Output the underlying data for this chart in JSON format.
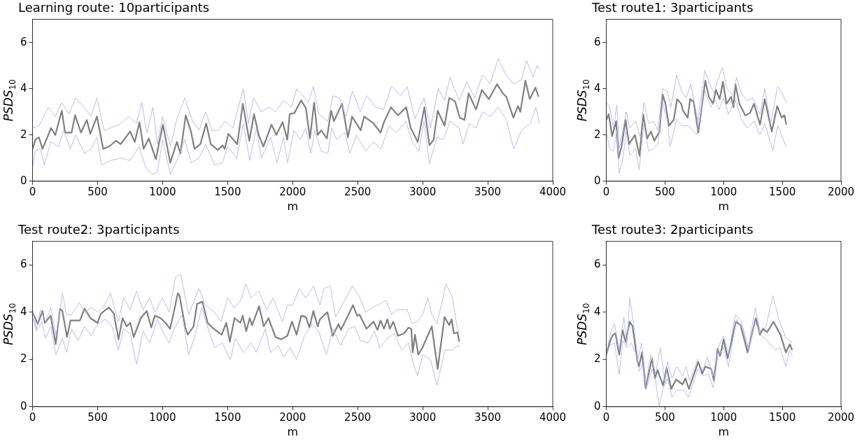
{
  "chart_data": [
    {
      "type": "line",
      "title": "Learning route: 10participants",
      "xlabel": "m",
      "ylabel": "PSDS$_{10}$",
      "xlim": [
        0,
        4000
      ],
      "xticks": [
        0,
        500,
        1000,
        1500,
        2000,
        2500,
        3000,
        3500,
        4000
      ],
      "ylim": [
        0,
        7
      ],
      "yticks": [
        0,
        2,
        4,
        6
      ],
      "grid": false,
      "legend": false,
      "marker": "none",
      "series": [
        {
          "color": "#b4b4f0",
          "x": [
            0,
            50,
            120,
            175,
            225,
            280,
            330,
            380,
            450,
            495,
            550,
            600,
            680,
            740,
            800,
            840,
            880,
            925,
            960,
            1000,
            1060,
            1110,
            1170,
            1230,
            1280,
            1330,
            1380,
            1430,
            1480,
            1540,
            1620,
            1660,
            1700,
            1760,
            1820,
            1870,
            1930,
            1990,
            2030,
            2080,
            2120,
            2160,
            2200,
            2270,
            2310,
            2360,
            2410,
            2460,
            2520,
            2570,
            2640,
            2700,
            2760,
            2830,
            2880,
            2940,
            3010,
            3060,
            3120,
            3170,
            3210,
            3280,
            3340,
            3400,
            3460,
            3520,
            3580,
            3640,
            3700,
            3760,
            3800,
            3850,
            3880,
            3900
          ],
          "values": [
            2.3,
            2.4,
            3.2,
            2.8,
            3.4,
            2.9,
            3.6,
            3.3,
            2.8,
            3.6,
            2.2,
            2.3,
            2.5,
            2.8,
            2.5,
            3.4,
            2.1,
            3.2,
            1.6,
            2.8,
            1.5,
            2.7,
            3.6,
            2.6,
            2.2,
            3.0,
            2.2,
            2.2,
            2.6,
            2.3,
            4.0,
            2.5,
            3.6,
            3.0,
            3.2,
            3.0,
            3.5,
            3.2,
            4.0,
            3.7,
            3.4,
            4.1,
            2.9,
            2.6,
            3.7,
            3.6,
            2.8,
            3.9,
            3.0,
            3.7,
            3.2,
            3.1,
            4.1,
            3.7,
            4.1,
            2.7,
            3.6,
            2.3,
            4.0,
            3.5,
            4.5,
            3.5,
            4.3,
            3.6,
            4.6,
            4.2,
            5.3,
            4.6,
            4.2,
            4.4,
            5.2,
            4.5,
            5.0,
            4.8
          ]
        },
        {
          "color": "#b4b4f0",
          "x": [
            0,
            20,
            60,
            90,
            140,
            200,
            240,
            290,
            330,
            400,
            450,
            495,
            530,
            600,
            680,
            750,
            820,
            870,
            920,
            960,
            1000,
            1060,
            1110,
            1170,
            1220,
            1280,
            1330,
            1400,
            1460,
            1500,
            1570,
            1620,
            1670,
            1720,
            1760,
            1830,
            1880,
            1930,
            1960,
            2010,
            2060,
            2100,
            2140,
            2170,
            2220,
            2270,
            2300,
            2340,
            2400,
            2440,
            2490,
            2560,
            2620,
            2680,
            2740,
            2800,
            2870,
            2920,
            2970,
            3010,
            3050,
            3110,
            3160,
            3210,
            3280,
            3310,
            3360,
            3410,
            3460,
            3520,
            3580,
            3640,
            3700,
            3760,
            3830,
            3870,
            3900
          ],
          "values": [
            0.6,
            1.3,
            1.4,
            0.7,
            1.7,
            1.5,
            2.2,
            1.4,
            2.0,
            1.2,
            1.4,
            1.9,
            0.7,
            0.9,
            1.0,
            0.9,
            1.5,
            0.6,
            0.3,
            0.4,
            1.8,
            0.3,
            0.9,
            1.8,
            0.8,
            1.0,
            1.6,
            0.7,
            0.8,
            1.5,
            1.0,
            2.5,
            0.9,
            2.3,
            1.0,
            1.9,
            0.8,
            1.9,
            0.8,
            2.2,
            1.8,
            2.3,
            1.2,
            2.2,
            1.3,
            1.2,
            2.3,
            1.8,
            2.1,
            1.2,
            2.0,
            1.3,
            1.7,
            1.4,
            2.4,
            2.1,
            2.6,
            1.7,
            1.3,
            2.6,
            0.75,
            1.9,
            1.8,
            2.6,
            2.3,
            1.6,
            2.5,
            2.3,
            3.0,
            2.8,
            3.2,
            2.7,
            1.4,
            2.2,
            2.5,
            3.2,
            2.5
          ]
        },
        {
          "color": "#808080",
          "x": [
            0,
            22,
            49,
            76,
            121,
            142,
            175,
            225,
            250,
            300,
            327,
            372,
            417,
            444,
            495,
            543,
            588,
            642,
            678,
            750,
            786,
            822,
            854,
            894,
            948,
            1002,
            1059,
            1110,
            1137,
            1178,
            1218,
            1245,
            1290,
            1335,
            1371,
            1424,
            1460,
            1478,
            1506,
            1574,
            1617,
            1667,
            1703,
            1739,
            1775,
            1838,
            1874,
            1923,
            1959,
            1977,
            2013,
            2066,
            2102,
            2133,
            2165,
            2192,
            2219,
            2263,
            2296,
            2317,
            2380,
            2425,
            2457,
            2523,
            2550,
            2622,
            2676,
            2702,
            2756,
            2810,
            2873,
            2908,
            2962,
            3013,
            3052,
            3084,
            3115,
            3168,
            3204,
            3249,
            3285,
            3321,
            3353,
            3410,
            3455,
            3509,
            3572,
            3616,
            3643,
            3697,
            3733,
            3751,
            3790,
            3823,
            3867,
            3891
          ],
          "values": [
            1.4,
            1.8,
            1.9,
            1.4,
            2.0,
            2.3,
            2.0,
            3.05,
            2.1,
            2.1,
            2.85,
            2.1,
            2.65,
            2.05,
            2.8,
            1.4,
            1.5,
            1.75,
            1.6,
            2.15,
            1.7,
            2.55,
            1.4,
            1.85,
            0.95,
            2.45,
            0.8,
            1.7,
            1.2,
            2.85,
            2.15,
            1.4,
            1.6,
            2.5,
            1.6,
            1.35,
            1.55,
            1.4,
            2.05,
            1.6,
            3.35,
            1.75,
            2.9,
            2.0,
            1.5,
            2.45,
            2.0,
            2.55,
            1.8,
            2.9,
            2.95,
            3.5,
            3.15,
            1.85,
            3.4,
            2.0,
            2.2,
            1.85,
            3.05,
            2.6,
            3.35,
            1.9,
            2.8,
            2.2,
            2.8,
            2.5,
            2.1,
            2.55,
            3.2,
            2.85,
            3.2,
            2.3,
            1.7,
            3.2,
            1.55,
            1.8,
            3.05,
            2.4,
            3.6,
            3.45,
            2.75,
            2.65,
            3.8,
            3.1,
            3.95,
            3.55,
            4.2,
            3.8,
            3.65,
            2.75,
            3.25,
            3.0,
            4.35,
            3.55,
            4.05,
            3.65
          ]
        }
      ]
    },
    {
      "type": "line",
      "title": "Test route1: 3participants",
      "xlabel": "m",
      "ylabel": "PSDS$_{10}$",
      "xlim": [
        0,
        2000
      ],
      "xticks": [
        0,
        500,
        1000,
        1500,
        2000
      ],
      "ylim": [
        0,
        7
      ],
      "yticks": [
        0,
        2,
        4,
        6
      ],
      "grid": false,
      "legend": false,
      "marker": "none",
      "series": [
        {
          "color": "#b4b4f0",
          "x": [
            0,
            30,
            60,
            90,
            110,
            140,
            170,
            200,
            250,
            290,
            320,
            360,
            400,
            440,
            480,
            520,
            550,
            600,
            640,
            680,
            720,
            780,
            840,
            880,
            920,
            950,
            990,
            1030,
            1080,
            1110,
            1150,
            1200,
            1250,
            1310,
            1350,
            1400,
            1460,
            1500,
            1534
          ],
          "values": [
            3.4,
            3.2,
            2.3,
            3.3,
            1.4,
            2.2,
            3.0,
            2.3,
            2.6,
            1.9,
            3.4,
            2.5,
            2.6,
            2.2,
            4.0,
            3.9,
            3.2,
            4.6,
            3.9,
            3.6,
            4.2,
            2.6,
            4.8,
            4.2,
            3.8,
            4.4,
            4.9,
            4.0,
            3.7,
            4.5,
            3.8,
            3.5,
            3.6,
            2.9,
            4.0,
            2.5,
            4.1,
            3.8,
            3.4
          ]
        },
        {
          "color": "#b4b4f0",
          "x": [
            0,
            30,
            60,
            90,
            110,
            140,
            170,
            200,
            250,
            280,
            320,
            360,
            400,
            440,
            480,
            520,
            545,
            600,
            640,
            700,
            770,
            840,
            890,
            930,
            960,
            1000,
            1040,
            1100,
            1150,
            1200,
            1260,
            1310,
            1350,
            1420,
            1460,
            1500,
            1534
          ],
          "values": [
            2.1,
            1.4,
            1.3,
            2.2,
            0.35,
            0.9,
            2.2,
            1.1,
            1.4,
            0.5,
            2.5,
            1.3,
            1.4,
            1.6,
            3.4,
            2.6,
            1.5,
            2.7,
            2.4,
            2.4,
            2.0,
            3.9,
            3.2,
            3.5,
            3.1,
            3.6,
            2.9,
            3.5,
            2.7,
            2.3,
            2.6,
            2.0,
            2.5,
            1.3,
            2.4,
            1.9,
            1.5
          ]
        },
        {
          "color": "#808080",
          "x": [
            0,
            20,
            50,
            84,
            104,
            130,
            164,
            194,
            244,
            284,
            314,
            348,
            380,
            410,
            454,
            480,
            504,
            534,
            574,
            604,
            638,
            654,
            694,
            714,
            744,
            784,
            844,
            874,
            910,
            934,
            966,
            994,
            1024,
            1064,
            1084,
            1100,
            1134,
            1184,
            1224,
            1258,
            1310,
            1350,
            1410,
            1456,
            1494,
            1518,
            1534
          ],
          "values": [
            2.65,
            2.9,
            1.95,
            2.6,
            1.0,
            1.5,
            2.65,
            1.6,
            2.0,
            1.1,
            2.9,
            1.85,
            2.15,
            1.75,
            2.15,
            3.75,
            3.35,
            2.4,
            2.65,
            3.55,
            3.35,
            3.05,
            2.75,
            3.55,
            3.45,
            2.1,
            4.35,
            3.65,
            3.35,
            3.95,
            3.55,
            4.3,
            3.35,
            3.65,
            3.2,
            4.2,
            3.35,
            2.85,
            2.95,
            3.35,
            2.45,
            3.55,
            2.15,
            3.25,
            2.75,
            2.85,
            2.45
          ]
        }
      ]
    },
    {
      "type": "line",
      "title": "Test route2: 3participants",
      "xlabel": "m",
      "ylabel": "PSDS$_{10}$",
      "xlim": [
        0,
        4000
      ],
      "xticks": [
        0,
        500,
        1000,
        1500,
        2000,
        2500,
        3000,
        3500,
        4000
      ],
      "ylim": [
        0,
        7
      ],
      "yticks": [
        0,
        2,
        4,
        6
      ],
      "grid": false,
      "legend": false,
      "marker": "none",
      "series": [
        {
          "color": "#b4b4f0",
          "x": [
            0,
            30,
            60,
            100,
            140,
            180,
            230,
            260,
            300,
            360,
            400,
            450,
            500,
            540,
            600,
            660,
            700,
            750,
            800,
            850,
            900,
            940,
            1000,
            1050,
            1100,
            1140,
            1200,
            1280,
            1330,
            1400,
            1450,
            1500,
            1550,
            1600,
            1640,
            1680,
            1740,
            1800,
            1850,
            1920,
            1960,
            2000,
            2050,
            2100,
            2160,
            2210,
            2240,
            2290,
            2330,
            2400,
            2460,
            2510,
            2560,
            2610,
            2650,
            2720,
            2760,
            2800,
            2880,
            2920,
            2960,
            3000,
            3040,
            3070,
            3110,
            3180,
            3230,
            3260,
            3280
          ],
          "values": [
            4.1,
            3.3,
            4.1,
            3.6,
            4.2,
            3.0,
            4.8,
            3.9,
            3.9,
            4.4,
            4.0,
            4.2,
            4.0,
            4.2,
            4.8,
            3.6,
            4.6,
            4.1,
            4.9,
            4.1,
            4.6,
            4.0,
            4.6,
            4.0,
            5.5,
            5.6,
            3.9,
            5.0,
            4.3,
            4.0,
            3.6,
            4.6,
            4.2,
            4.5,
            5.2,
            4.6,
            4.9,
            4.1,
            4.6,
            3.6,
            4.3,
            4.3,
            5.0,
            4.6,
            5.1,
            4.3,
            5.0,
            5.1,
            3.8,
            4.5,
            5.1,
            4.7,
            4.0,
            4.2,
            4.3,
            4.5,
            3.9,
            4.1,
            4.1,
            3.5,
            3.6,
            3.9,
            4.6,
            3.9,
            3.5,
            5.2,
            4.6,
            3.5,
            3.1
          ]
        },
        {
          "color": "#b4b4f0",
          "x": [
            0,
            30,
            70,
            100,
            140,
            180,
            230,
            260,
            300,
            350,
            400,
            450,
            500,
            560,
            610,
            660,
            700,
            750,
            800,
            850,
            900,
            960,
            1000,
            1050,
            1090,
            1150,
            1200,
            1250,
            1300,
            1350,
            1400,
            1460,
            1520,
            1560,
            1620,
            1680,
            1720,
            1790,
            1830,
            1890,
            1930,
            1980,
            2030,
            2090,
            2150,
            2200,
            2260,
            2310,
            2370,
            2430,
            2480,
            2520,
            2580,
            2630,
            2670,
            2730,
            2780,
            2840,
            2890,
            2925,
            2960,
            3000,
            3060,
            3110,
            3170,
            3230,
            3270,
            3280
          ],
          "values": [
            3.8,
            3.2,
            3.6,
            2.9,
            3.4,
            2.2,
            2.9,
            2.3,
            3.3,
            2.8,
            3.4,
            3.0,
            3.5,
            3.7,
            3.4,
            2.4,
            3.3,
            3.1,
            1.8,
            3.2,
            2.7,
            3.7,
            3.2,
            2.7,
            3.3,
            3.9,
            2.2,
            3.0,
            4.2,
            3.3,
            2.5,
            2.7,
            2.0,
            2.9,
            2.3,
            2.7,
            2.3,
            3.3,
            2.3,
            2.6,
            2.1,
            2.5,
            2.0,
            3.0,
            3.5,
            3.2,
            2.2,
            3.3,
            2.6,
            3.3,
            3.4,
            2.8,
            2.7,
            3.2,
            2.5,
            2.9,
            3.1,
            2.4,
            2.7,
            1.9,
            1.3,
            2.2,
            2.0,
            0.9,
            2.4,
            2.4,
            2.6,
            2.5
          ]
        },
        {
          "color": "#808080",
          "x": [
            0,
            40,
            76,
            94,
            139,
            178,
            211,
            229,
            265,
            292,
            364,
            400,
            445,
            499,
            526,
            586,
            625,
            661,
            692,
            724,
            751,
            778,
            832,
            877,
            913,
            940,
            985,
            1022,
            1058,
            1076,
            1117,
            1130,
            1175,
            1193,
            1238,
            1265,
            1306,
            1346,
            1382,
            1418,
            1454,
            1490,
            1517,
            1553,
            1598,
            1616,
            1643,
            1670,
            1688,
            1742,
            1778,
            1814,
            1841,
            1868,
            1913,
            1959,
            1995,
            2030,
            2066,
            2102,
            2129,
            2159,
            2192,
            2210,
            2267,
            2308,
            2353,
            2371,
            2425,
            2464,
            2496,
            2514,
            2568,
            2622,
            2652,
            2676,
            2702,
            2729,
            2747,
            2774,
            2810,
            2855,
            2891,
            2912,
            2923,
            2941,
            2966,
            2998,
            3034,
            3070,
            3115,
            3168,
            3204,
            3222,
            3240,
            3267,
            3281
          ],
          "values": [
            4.0,
            3.5,
            4.05,
            3.55,
            3.85,
            2.65,
            4.15,
            4.05,
            2.95,
            3.65,
            3.65,
            4.15,
            3.75,
            3.55,
            3.95,
            4.2,
            3.95,
            2.85,
            3.75,
            3.4,
            3.55,
            2.95,
            3.75,
            4.05,
            3.35,
            3.85,
            3.75,
            3.55,
            3.3,
            3.75,
            4.8,
            4.7,
            3.35,
            3.05,
            3.4,
            4.35,
            4.45,
            3.55,
            3.35,
            3.2,
            3.05,
            3.55,
            2.75,
            3.75,
            3.55,
            3.85,
            3.2,
            3.75,
            3.45,
            4.25,
            3.4,
            3.75,
            3.35,
            2.95,
            2.85,
            3.0,
            3.6,
            3.05,
            3.85,
            3.8,
            3.35,
            4.05,
            3.4,
            3.7,
            4.0,
            3.0,
            3.5,
            3.25,
            3.85,
            4.3,
            3.85,
            3.9,
            3.3,
            3.6,
            3.25,
            3.65,
            3.3,
            3.7,
            3.3,
            3.6,
            3.0,
            3.1,
            3.35,
            3.3,
            2.3,
            3.05,
            2.2,
            2.5,
            2.95,
            3.4,
            1.6,
            3.8,
            3.45,
            3.7,
            3.1,
            3.15,
            2.75
          ]
        }
      ]
    },
    {
      "type": "line",
      "title": "Test route3: 2participants",
      "xlabel": "m",
      "ylabel": "PSDS$_{10}$",
      "xlim": [
        0,
        2000
      ],
      "xticks": [
        0,
        500,
        1000,
        1500,
        2000
      ],
      "ylim": [
        0,
        7
      ],
      "yticks": [
        0,
        2,
        4,
        6
      ],
      "grid": false,
      "legend": false,
      "marker": "none",
      "series": [
        {
          "color": "#b4b4f0",
          "x": [
            0,
            40,
            70,
            110,
            150,
            175,
            200,
            230,
            270,
            300,
            340,
            380,
            420,
            460,
            500,
            520,
            560,
            600,
            650,
            680,
            710,
            780,
            820,
            860,
            910,
            960,
            1000,
            1040,
            1100,
            1150,
            1210,
            1270,
            1310,
            1360,
            1420,
            1470,
            1530,
            1560,
            1584
          ],
          "values": [
            2.3,
            3.2,
            3.5,
            2.4,
            3.8,
            2.6,
            4.6,
            3.6,
            2.0,
            2.7,
            1.0,
            2.2,
            1.4,
            2.5,
            1.0,
            1.9,
            1.2,
            1.7,
            1.3,
            1.7,
            1.1,
            2.0,
            1.5,
            2.1,
            1.3,
            2.6,
            3.0,
            2.2,
            3.9,
            3.6,
            2.5,
            4.2,
            3.2,
            3.4,
            4.7,
            3.7,
            2.9,
            2.8,
            2.7
          ]
        },
        {
          "color": "#b4b4f0",
          "x": [
            0,
            30,
            70,
            110,
            140,
            175,
            210,
            250,
            280,
            310,
            340,
            390,
            420,
            450,
            480,
            520,
            560,
            600,
            660,
            700,
            780,
            820,
            870,
            910,
            950,
            1000,
            1040,
            1110,
            1160,
            1210,
            1270,
            1320,
            1370,
            1440,
            1480,
            1530,
            1560,
            1584
          ],
          "values": [
            2.1,
            2.6,
            2.7,
            1.35,
            2.8,
            2.5,
            2.7,
            2.3,
            1.5,
            1.8,
            0.7,
            1.6,
            1.1,
            0.0,
            0.7,
            1.2,
            0.4,
            0.7,
            0.7,
            0.4,
            1.6,
            1.3,
            1.4,
            0.8,
            2.1,
            2.5,
            1.7,
            3.7,
            3.3,
            2.4,
            3.6,
            3.0,
            2.8,
            2.4,
            2.5,
            1.7,
            2.4,
            2.1
          ]
        },
        {
          "color": "#808080",
          "x": [
            0,
            34,
            58,
            78,
            110,
            138,
            164,
            200,
            224,
            264,
            278,
            304,
            334,
            390,
            414,
            438,
            454,
            484,
            514,
            554,
            594,
            650,
            674,
            704,
            784,
            818,
            844,
            894,
            918,
            948,
            970,
            1000,
            1034,
            1104,
            1144,
            1204,
            1274,
            1310,
            1334,
            1370,
            1424,
            1484,
            1530,
            1564,
            1584
          ],
          "values": [
            2.2,
            2.8,
            3.05,
            3.1,
            2.2,
            3.25,
            2.75,
            3.6,
            3.4,
            1.95,
            1.7,
            2.3,
            0.8,
            2.05,
            1.2,
            1.55,
            1.3,
            0.9,
            1.65,
            0.75,
            1.15,
            0.95,
            1.2,
            0.75,
            1.9,
            1.4,
            1.7,
            1.6,
            1.1,
            2.45,
            2.15,
            2.85,
            2.05,
            3.6,
            3.45,
            2.3,
            3.75,
            3.05,
            3.3,
            3.15,
            3.6,
            3.05,
            2.3,
            2.65,
            2.4
          ]
        }
      ]
    }
  ]
}
